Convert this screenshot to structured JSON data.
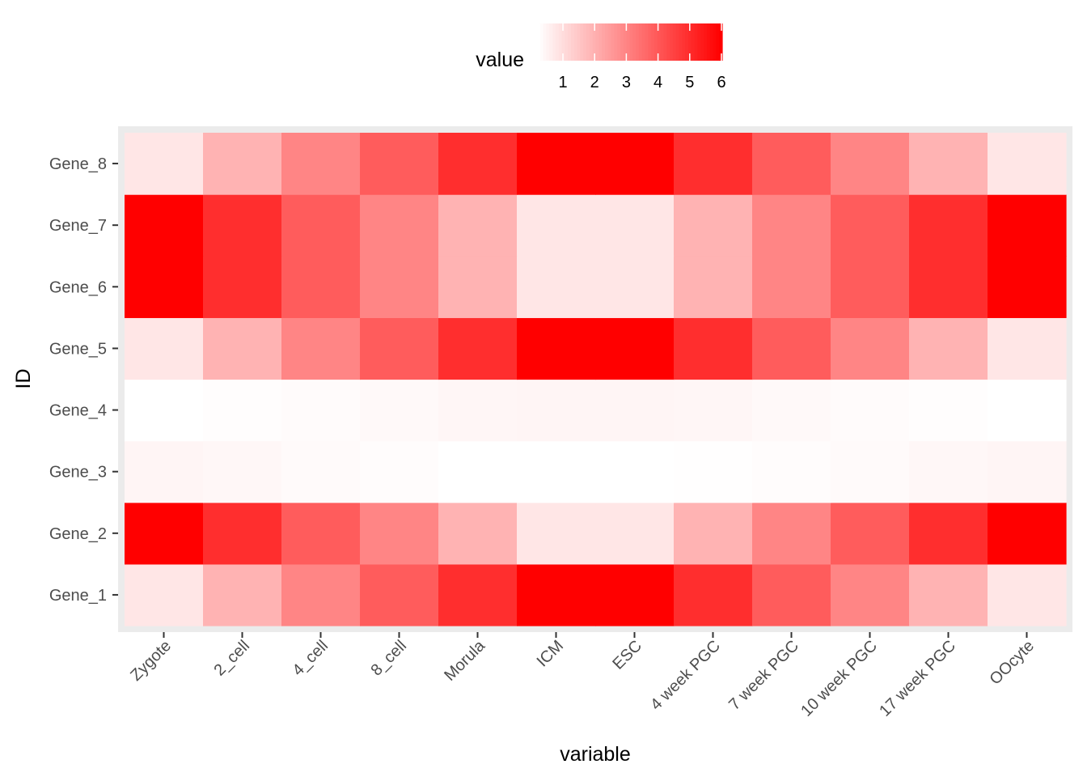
{
  "chart_data": {
    "type": "heatmap",
    "title": "",
    "xlabel": "variable",
    "ylabel": "ID",
    "x_categories": [
      "Zygote",
      "2_cell",
      "4_cell",
      "8_cell",
      "Morula",
      "ICM",
      "ESC",
      "4 week PGC",
      "7 week PGC",
      "10 week PGC",
      "17 week PGC",
      "OOcyte"
    ],
    "y_categories": [
      "Gene_1",
      "Gene_2",
      "Gene_3",
      "Gene_4",
      "Gene_5",
      "Gene_6",
      "Gene_7",
      "Gene_8"
    ],
    "values": [
      [
        1.5,
        2.5,
        3.4,
        4.2,
        5.1,
        6.0,
        6.0,
        5.1,
        4.2,
        3.4,
        2.5,
        1.5
      ],
      [
        6.0,
        5.1,
        4.2,
        3.4,
        2.5,
        1.5,
        1.5,
        2.5,
        3.4,
        4.2,
        5.1,
        6.0
      ],
      [
        1.2,
        1.15,
        1.1,
        1.05,
        1.0,
        1.0,
        1.0,
        1.02,
        1.06,
        1.1,
        1.15,
        1.2
      ],
      [
        1.0,
        1.03,
        1.07,
        1.12,
        1.18,
        1.2,
        1.2,
        1.18,
        1.12,
        1.07,
        1.03,
        1.0
      ],
      [
        1.5,
        2.5,
        3.4,
        4.2,
        5.1,
        6.0,
        6.0,
        5.1,
        4.2,
        3.4,
        2.5,
        1.5
      ],
      [
        6.0,
        5.1,
        4.2,
        3.4,
        2.5,
        1.5,
        1.5,
        2.5,
        3.4,
        4.2,
        5.1,
        6.0
      ],
      [
        6.0,
        5.1,
        4.2,
        3.4,
        2.5,
        1.5,
        1.5,
        2.5,
        3.4,
        4.2,
        5.1,
        6.0
      ],
      [
        1.5,
        2.5,
        3.4,
        4.2,
        5.1,
        6.0,
        6.0,
        5.1,
        4.2,
        3.4,
        2.5,
        1.5
      ]
    ],
    "color_scale": {
      "low": "#FFFFFF",
      "high": "#FF0000",
      "range": [
        1,
        6
      ]
    },
    "legend": {
      "title": "value",
      "ticks": [
        1,
        2,
        3,
        4,
        5,
        6
      ],
      "placement": "top"
    },
    "panel_background": "#EBEBEB",
    "grid": true
  }
}
